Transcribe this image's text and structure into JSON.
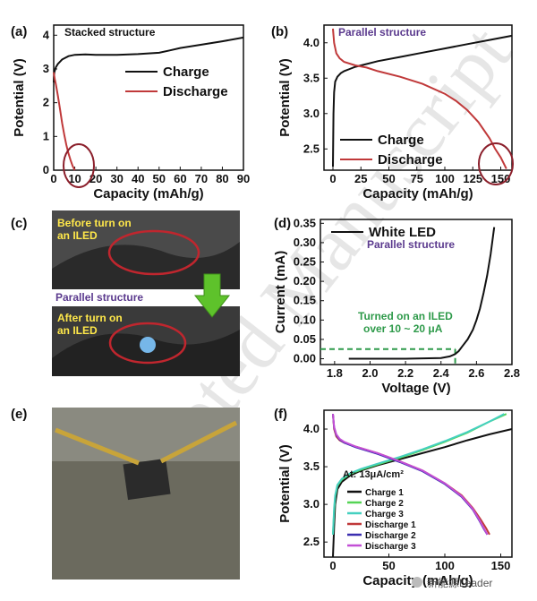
{
  "watermark": "Accepted Manuscript",
  "footer_watermark": "新能源Leader",
  "panels": {
    "a": {
      "letter": "(a)",
      "note": "Stacked structure"
    },
    "b": {
      "letter": "(b)",
      "note": "Parallel structure"
    },
    "c": {
      "letter": "(c)",
      "before_line1": "Before turn on",
      "before_line2": "an ILED",
      "note": "Parallel structure",
      "after_line1": "After turn on",
      "after_line2": "an ILED"
    },
    "d": {
      "letter": "(d)",
      "note": "Parallel structure",
      "annotation_line1": "Turned on an ILED",
      "annotation_line2": "over 10 ~ 20 μA"
    },
    "e": {
      "letter": "(e)"
    },
    "f": {
      "letter": "(f)",
      "rate_label": "At: 13μA/cm²"
    }
  },
  "colors": {
    "black": "#111111",
    "red": "#c0393a",
    "green": "#55d455",
    "cyan": "#45d0c0",
    "discharge1": "#c0393a",
    "discharge2": "#3b2fb0",
    "discharge3": "#c34fd6",
    "ellipse": "#8b1f2b",
    "dashed": "#2e9a4a",
    "arrow": "#5ec22b"
  },
  "chart_data": [
    {
      "type": "line",
      "panel": "a",
      "xlabel": "Capacity (mAh/g)",
      "ylabel": "Potential (V)",
      "xlim": [
        0,
        90
      ],
      "ylim": [
        0,
        4.3
      ],
      "xticks": [
        "0",
        "10",
        "20",
        "30",
        "40",
        "50",
        "60",
        "70",
        "80",
        "90"
      ],
      "yticks": [
        "0",
        "1",
        "2",
        "3",
        "4"
      ],
      "legend": "center-right",
      "series": [
        {
          "name": "Charge",
          "color": "#111111",
          "x": [
            0,
            0.3,
            1,
            2,
            4,
            7,
            10,
            15,
            20,
            30,
            40,
            50,
            55,
            60,
            70,
            80,
            90
          ],
          "y": [
            2.6,
            2.9,
            3.05,
            3.15,
            3.28,
            3.38,
            3.42,
            3.43,
            3.42,
            3.42,
            3.44,
            3.48,
            3.55,
            3.62,
            3.72,
            3.82,
            3.93
          ]
        },
        {
          "name": "Discharge",
          "color": "#c0393a",
          "x": [
            0,
            0.5,
            1,
            2,
            3,
            4,
            5,
            6,
            7,
            8,
            9,
            10
          ],
          "y": [
            2.9,
            2.7,
            2.55,
            2.2,
            1.8,
            1.4,
            1.05,
            0.75,
            0.5,
            0.3,
            0.12,
            0.0
          ]
        }
      ]
    },
    {
      "type": "line",
      "panel": "b",
      "xlabel": "Capacity (mAh/g)",
      "ylabel": "Potential (V)",
      "xlim": [
        -8,
        160
      ],
      "ylim": [
        2.2,
        4.25
      ],
      "xticks": [
        "0",
        "25",
        "50",
        "75",
        "100",
        "125",
        "150"
      ],
      "yticks": [
        "2.5",
        "3.0",
        "3.5",
        "4.0"
      ],
      "legend": "lower-left",
      "series": [
        {
          "name": "Charge",
          "color": "#111111",
          "x": [
            0,
            0.5,
            1,
            2,
            4,
            7,
            10,
            15,
            20,
            30,
            40,
            60,
            80,
            100,
            120,
            140,
            160
          ],
          "y": [
            2.25,
            3.0,
            3.3,
            3.45,
            3.52,
            3.57,
            3.6,
            3.63,
            3.66,
            3.7,
            3.74,
            3.8,
            3.86,
            3.92,
            3.98,
            4.04,
            4.1
          ]
        },
        {
          "name": "Discharge",
          "color": "#c0393a",
          "x": [
            0,
            1,
            3,
            6,
            10,
            20,
            30,
            40,
            60,
            80,
            100,
            110,
            120,
            130,
            140,
            145,
            150,
            155
          ],
          "y": [
            4.2,
            4.0,
            3.85,
            3.78,
            3.73,
            3.68,
            3.65,
            3.6,
            3.52,
            3.42,
            3.28,
            3.18,
            3.05,
            2.88,
            2.65,
            2.5,
            2.38,
            2.22
          ]
        }
      ]
    },
    {
      "type": "line",
      "panel": "d",
      "xlabel": "Voltage (V)",
      "ylabel": "Current (mA)",
      "xlim": [
        1.72,
        2.8
      ],
      "ylim": [
        -0.015,
        0.36
      ],
      "xticks": [
        "1.8",
        "2.0",
        "2.2",
        "2.4",
        "2.6",
        "2.8"
      ],
      "yticks": [
        "0.00",
        "0.05",
        "0.10",
        "0.15",
        "0.20",
        "0.25",
        "0.30",
        "0.35"
      ],
      "legend": "top-left",
      "series": [
        {
          "name": "White LED",
          "color": "#111111",
          "x": [
            1.88,
            2.0,
            2.2,
            2.4,
            2.45,
            2.48,
            2.5,
            2.52,
            2.55,
            2.58,
            2.6,
            2.62,
            2.64,
            2.66,
            2.68,
            2.7
          ],
          "y": [
            0,
            0,
            0,
            0.002,
            0.006,
            0.012,
            0.02,
            0.032,
            0.05,
            0.075,
            0.1,
            0.13,
            0.17,
            0.215,
            0.27,
            0.34
          ]
        }
      ],
      "threshold": {
        "x": 2.48,
        "y": 0.025
      }
    },
    {
      "type": "line",
      "panel": "f",
      "xlabel": "Capacity (mAh/g)",
      "ylabel": "Potential (V)",
      "xlim": [
        -8,
        160
      ],
      "ylim": [
        2.3,
        4.25
      ],
      "xticks": [
        "0",
        "50",
        "100",
        "150"
      ],
      "yticks": [
        "2.5",
        "3.0",
        "3.5",
        "4.0"
      ],
      "legend": "lower-left",
      "series": [
        {
          "name": "Charge 1",
          "color": "#111111",
          "x": [
            0,
            1,
            2,
            4,
            8,
            15,
            25,
            40,
            60,
            80,
            100,
            120,
            140,
            160
          ],
          "y": [
            2.3,
            2.7,
            3.0,
            3.2,
            3.3,
            3.38,
            3.45,
            3.52,
            3.6,
            3.68,
            3.76,
            3.85,
            3.93,
            4.0
          ]
        },
        {
          "name": "Charge 2",
          "color": "#55d455",
          "x": [
            0,
            1,
            2,
            4,
            8,
            15,
            25,
            40,
            60,
            80,
            100,
            120,
            140,
            155
          ],
          "y": [
            2.6,
            2.9,
            3.1,
            3.25,
            3.33,
            3.4,
            3.46,
            3.53,
            3.62,
            3.72,
            3.83,
            3.95,
            4.1,
            4.2
          ]
        },
        {
          "name": "Charge 3",
          "color": "#45d0c0",
          "x": [
            0,
            1,
            2,
            4,
            8,
            15,
            25,
            40,
            60,
            80,
            100,
            120,
            140,
            153
          ],
          "y": [
            2.6,
            2.95,
            3.12,
            3.26,
            3.34,
            3.41,
            3.47,
            3.54,
            3.63,
            3.73,
            3.84,
            3.96,
            4.1,
            4.2
          ]
        },
        {
          "name": "Discharge 1",
          "color": "#c0393a",
          "x": [
            0,
            1,
            3,
            6,
            10,
            20,
            40,
            60,
            80,
            100,
            115,
            125,
            132,
            137,
            140
          ],
          "y": [
            4.2,
            4.0,
            3.9,
            3.85,
            3.82,
            3.77,
            3.68,
            3.57,
            3.45,
            3.28,
            3.12,
            2.95,
            2.8,
            2.68,
            2.6
          ]
        },
        {
          "name": "Discharge 2",
          "color": "#3b2fb0",
          "x": [
            0,
            1,
            3,
            6,
            10,
            20,
            40,
            60,
            80,
            100,
            115,
            125,
            131,
            135,
            138
          ],
          "y": [
            4.2,
            4.02,
            3.92,
            3.86,
            3.82,
            3.76,
            3.67,
            3.56,
            3.44,
            3.27,
            3.1,
            2.93,
            2.78,
            2.67,
            2.6
          ]
        },
        {
          "name": "Discharge 3",
          "color": "#c34fd6",
          "x": [
            0,
            1,
            3,
            6,
            10,
            20,
            40,
            60,
            80,
            100,
            115,
            125,
            131,
            135,
            138
          ],
          "y": [
            4.2,
            4.03,
            3.93,
            3.87,
            3.83,
            3.77,
            3.68,
            3.57,
            3.45,
            3.28,
            3.11,
            2.94,
            2.79,
            2.68,
            2.6
          ]
        }
      ]
    }
  ]
}
